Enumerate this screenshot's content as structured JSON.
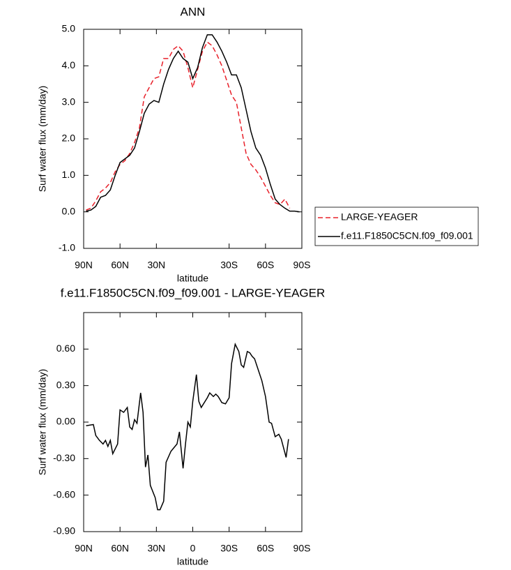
{
  "chart_data": [
    {
      "type": "line",
      "title": "ANN",
      "xlabel": "latitude",
      "ylabel": "Surf water flux (mm/day)",
      "x": [
        88,
        84,
        80,
        76,
        72,
        68,
        64,
        60,
        56,
        52,
        48,
        44,
        40,
        36,
        32,
        28,
        24,
        20,
        16,
        12,
        8,
        4,
        0,
        -4,
        -8,
        -12,
        -16,
        -20,
        -24,
        -28,
        -32,
        -36,
        -40,
        -44,
        -48,
        -52,
        -56,
        -60,
        -64,
        -68,
        -72,
        -76,
        -80,
        -84,
        -88
      ],
      "series": [
        {
          "name": "LARGE-YEAGER",
          "color": "#e8202a",
          "linestyle": "dashed",
          "values": [
            0.05,
            0.1,
            0.3,
            0.55,
            0.65,
            0.8,
            1.1,
            1.3,
            1.4,
            1.6,
            1.9,
            2.3,
            3.15,
            3.4,
            3.65,
            3.7,
            4.2,
            4.2,
            4.45,
            4.55,
            4.4,
            3.95,
            3.4,
            3.9,
            4.4,
            4.65,
            4.55,
            4.3,
            4.0,
            3.6,
            3.2,
            3.0,
            2.3,
            1.6,
            1.3,
            1.15,
            0.95,
            0.7,
            0.45,
            0.25,
            0.2,
            0.35,
            0.1,
            null,
            null
          ]
        },
        {
          "name": "f.e11.F1850C5CN.f09_f09.001",
          "color": "#000000",
          "linestyle": "solid",
          "values": [
            0.02,
            0.05,
            0.15,
            0.4,
            0.45,
            0.6,
            1.0,
            1.35,
            1.45,
            1.55,
            1.75,
            2.2,
            2.7,
            2.95,
            3.05,
            3.0,
            3.5,
            3.9,
            4.2,
            4.4,
            4.2,
            4.1,
            3.65,
            3.95,
            4.5,
            4.85,
            4.85,
            4.65,
            4.4,
            4.1,
            3.75,
            3.75,
            3.4,
            2.8,
            2.2,
            1.75,
            1.55,
            1.2,
            0.75,
            0.35,
            0.2,
            0.1,
            0.02,
            0.02,
            0.0
          ]
        }
      ],
      "xlim": [
        90,
        -90
      ],
      "xticks": [
        {
          "value": 90,
          "label": "90N"
        },
        {
          "value": 60,
          "label": "60N"
        },
        {
          "value": 30,
          "label": "30N"
        },
        {
          "value": -30,
          "label": "30S"
        },
        {
          "value": -60,
          "label": "60S"
        },
        {
          "value": -90,
          "label": "90S"
        }
      ],
      "ylim": [
        -1,
        5
      ],
      "yticks": [
        {
          "value": -1,
          "label": "-1.0"
        },
        {
          "value": 0,
          "label": "0.0"
        },
        {
          "value": 1,
          "label": "1.0"
        },
        {
          "value": 2,
          "label": "2.0"
        },
        {
          "value": 3,
          "label": "3.0"
        },
        {
          "value": 4,
          "label": "4.0"
        },
        {
          "value": 5,
          "label": "5.0"
        }
      ]
    },
    {
      "type": "line",
      "title": "f.e11.F1850C5CN.f09_f09.001 - LARGE-YEAGER",
      "xlabel": "latitude",
      "ylabel": "Surf water flux (mm/day)",
      "x": [
        88,
        82,
        80,
        77,
        74,
        72,
        70,
        68,
        66,
        62,
        60,
        57,
        54,
        52,
        50,
        48,
        46,
        43,
        41,
        39,
        37,
        35,
        31,
        29,
        27,
        24,
        22,
        18,
        13,
        11,
        8,
        6,
        4,
        2,
        0,
        -3,
        -5,
        -7,
        -12,
        -14,
        -17,
        -19,
        -21,
        -24,
        -27,
        -30,
        -32,
        -35,
        -38,
        -40,
        -42,
        -45,
        -47,
        -49,
        -51,
        -54,
        -57,
        -60,
        -63,
        -65,
        -68,
        -71,
        -73,
        -77,
        -79
      ],
      "series": [
        {
          "color": "#000000",
          "linestyle": "solid",
          "values": [
            -0.03,
            -0.02,
            -0.11,
            -0.15,
            -0.18,
            -0.15,
            -0.2,
            -0.15,
            -0.26,
            -0.18,
            0.1,
            0.08,
            0.12,
            -0.04,
            -0.06,
            0.02,
            -0.01,
            0.24,
            0.08,
            -0.37,
            -0.27,
            -0.52,
            -0.62,
            -0.72,
            -0.72,
            -0.65,
            -0.33,
            -0.24,
            -0.18,
            -0.08,
            -0.38,
            -0.18,
            0.0,
            -0.04,
            0.17,
            0.39,
            0.17,
            0.12,
            0.2,
            0.24,
            0.21,
            0.23,
            0.21,
            0.16,
            0.15,
            0.2,
            0.48,
            0.64,
            0.58,
            0.47,
            0.45,
            0.58,
            0.57,
            0.54,
            0.52,
            0.43,
            0.34,
            0.21,
            0.0,
            -0.01,
            -0.12,
            -0.1,
            -0.14,
            -0.29,
            -0.14
          ]
        }
      ],
      "xlim": [
        90,
        -90
      ],
      "xticks": [
        {
          "value": 90,
          "label": "90N"
        },
        {
          "value": 60,
          "label": "60N"
        },
        {
          "value": 30,
          "label": "30N"
        },
        0,
        {
          "value": -30,
          "label": "30S"
        },
        {
          "value": -60,
          "label": "60S"
        },
        {
          "value": -90,
          "label": "90S"
        }
      ],
      "ylim": [
        -0.9,
        0.9
      ],
      "yticks": [
        {
          "value": -0.9,
          "label": "-0.90"
        },
        {
          "value": -0.6,
          "label": "-0.60"
        },
        {
          "value": -0.3,
          "label": "-0.30"
        },
        {
          "value": 0,
          "label": "0.00"
        },
        {
          "value": 0.3,
          "label": "0.30"
        },
        {
          "value": 0.6,
          "label": "0.60"
        }
      ]
    }
  ]
}
